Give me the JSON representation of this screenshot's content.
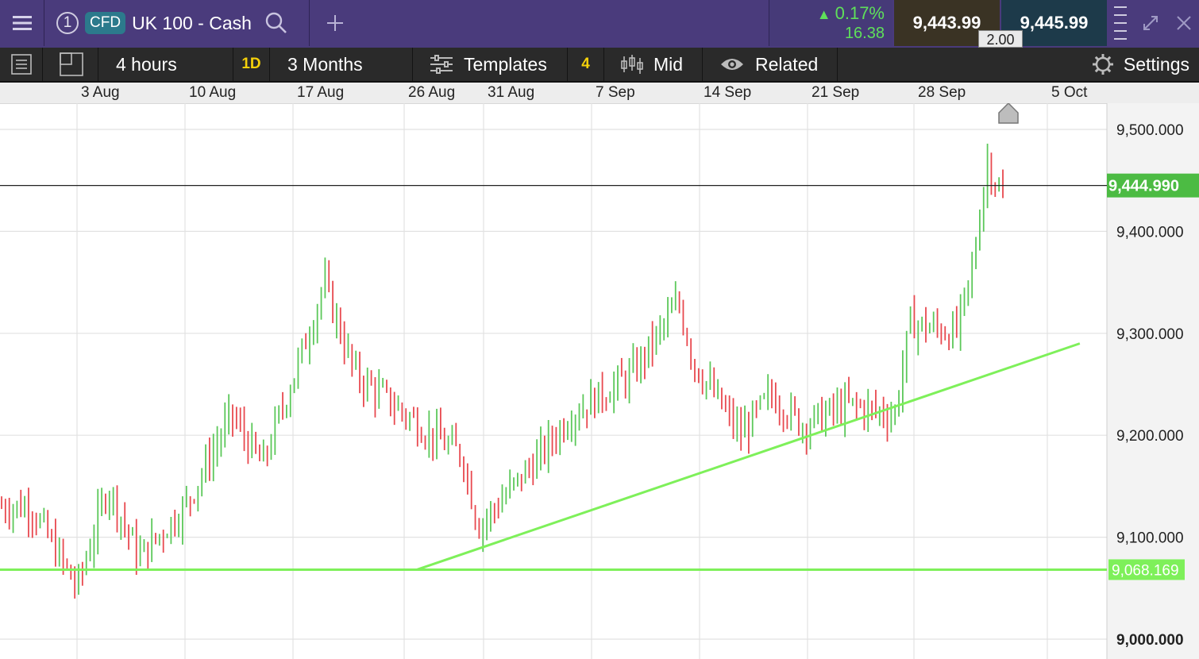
{
  "header": {
    "tab_number": "1",
    "instrument_type": "CFD",
    "instrument_name": "UK 100 - Cash",
    "change_percent": "0.17%",
    "change_points": "16.38",
    "sell_price": "9,443.99",
    "buy_price": "9,445.99",
    "spread": "2.00"
  },
  "toolbar": {
    "interval": "4 hours",
    "period_shortcut": "1D",
    "range": "3 Months",
    "templates_label": "Templates",
    "indicator_count": "4",
    "price_type": "Mid",
    "related_label": "Related",
    "settings_label": "Settings"
  },
  "icons": [
    "menu-icon",
    "search-icon",
    "plus-icon",
    "quantity-icon",
    "expand-icon",
    "close-icon",
    "list-icon",
    "layout-icon",
    "templates-icon",
    "candles-icon",
    "eye-icon",
    "gear-icon",
    "home-marker-icon"
  ],
  "colors": {
    "up": "#5cc85a",
    "down": "#e8494f",
    "trendline": "#7ef05a",
    "current_price_badge": "#4cbb43",
    "header_bg": "#4a3b7c"
  },
  "chart_data": {
    "type": "ohlc",
    "title": "",
    "x_labels": [
      "3 Aug",
      "10 Aug",
      "17 Aug",
      "26 Aug",
      "31 Aug",
      "7 Sep",
      "14 Sep",
      "21 Sep",
      "28 Sep",
      "5 Oct"
    ],
    "y_ticks": [
      "9,500.000",
      "9,400.000",
      "9,300.000",
      "9,200.000",
      "9,100.000",
      "9,000.000"
    ],
    "y_range": [
      9000,
      9500
    ],
    "grid": true,
    "current_price": "9,444.990",
    "horizontal_line": "9,068.169",
    "trendline": {
      "start": [
        "25 Aug",
        9068
      ],
      "end": [
        "7 Oct",
        9290
      ]
    },
    "approx_levels": [
      {
        "date": "31 Jul",
        "price": 9130
      },
      {
        "date": "3 Aug",
        "price": 9050
      },
      {
        "date": "5 Aug",
        "price": 9150
      },
      {
        "date": "7 Aug",
        "price": 9080
      },
      {
        "date": "10 Aug",
        "price": 9130
      },
      {
        "date": "13 Aug",
        "price": 9220
      },
      {
        "date": "15 Aug",
        "price": 9170
      },
      {
        "date": "18 Aug",
        "price": 9300
      },
      {
        "date": "19 Aug",
        "price": 9350
      },
      {
        "date": "21 Aug",
        "price": 9260
      },
      {
        "date": "26 Aug",
        "price": 9200
      },
      {
        "date": "28 Aug",
        "price": 9180
      },
      {
        "date": "29 Aug",
        "price": 9110
      },
      {
        "date": "2 Sep",
        "price": 9180
      },
      {
        "date": "4 Sep",
        "price": 9220
      },
      {
        "date": "8 Sep",
        "price": 9260
      },
      {
        "date": "11 Sep",
        "price": 9330
      },
      {
        "date": "12 Sep",
        "price": 9270
      },
      {
        "date": "15 Sep",
        "price": 9200
      },
      {
        "date": "17 Sep",
        "price": 9240
      },
      {
        "date": "19 Sep",
        "price": 9210
      },
      {
        "date": "22 Sep",
        "price": 9230
      },
      {
        "date": "25 Sep",
        "price": 9220
      },
      {
        "date": "26 Sep",
        "price": 9310
      },
      {
        "date": "29 Sep",
        "price": 9300
      },
      {
        "date": "30 Sep",
        "price": 9360
      },
      {
        "date": "1 Oct",
        "price": 9470
      },
      {
        "date": "2 Oct",
        "price": 9430
      },
      {
        "date": "3 Oct",
        "price": 9445
      }
    ]
  }
}
